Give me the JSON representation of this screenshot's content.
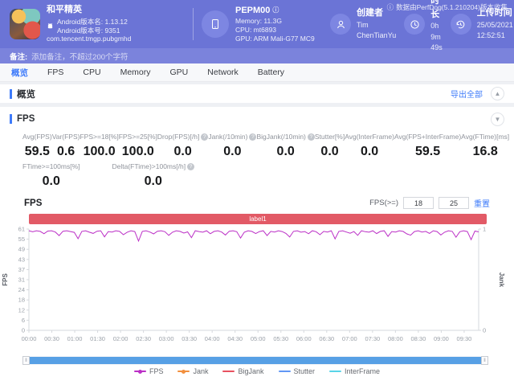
{
  "header": {
    "collect_note": "数据由PerfDog(5.1.210204)版本收集",
    "app": {
      "title": "和平精英",
      "version_name": "Android版本名: 1.13.12",
      "version_code": "Android版本号: 9351",
      "package": "com.tencent.tmgp.pubgmhd"
    },
    "device": {
      "name": "PEPM00",
      "memory": "Memory: 11.3G",
      "cpu": "CPU: mt6893",
      "gpu": "GPU: ARM Mali-G77 MC9"
    },
    "creator": {
      "label": "创建者",
      "value": "Tim ChenTianYu"
    },
    "duration": {
      "label": "时长",
      "value": "0h 9m 49s"
    },
    "upload": {
      "label": "上传时间",
      "value": "25/05/2021 12:52:51"
    }
  },
  "remark": {
    "label": "备注:",
    "placeholder": "添加备注，不超过200个字符"
  },
  "tabs": [
    {
      "label": "概览",
      "active": true
    },
    {
      "label": "FPS",
      "active": false
    },
    {
      "label": "CPU",
      "active": false
    },
    {
      "label": "Memory",
      "active": false
    },
    {
      "label": "GPU",
      "active": false
    },
    {
      "label": "Network",
      "active": false
    },
    {
      "label": "Battery",
      "active": false
    }
  ],
  "overview_section": {
    "title": "概览",
    "export_label": "导出全部"
  },
  "fps_section": {
    "title": "FPS",
    "stats": [
      {
        "label": "Avg(FPS)",
        "value": "59.5",
        "info": false
      },
      {
        "label": "Var(FPS)",
        "value": "0.6",
        "info": false
      },
      {
        "label": "FPS>=18[%]",
        "value": "100.0",
        "info": false
      },
      {
        "label": "FPS>=25[%]",
        "value": "100.0",
        "info": false
      },
      {
        "label": "Drop(FPS)[/h]",
        "value": "0.0",
        "info": true
      },
      {
        "label": "Jank(/10min)",
        "value": "0.0",
        "info": true
      },
      {
        "label": "BigJank(/10min)",
        "value": "0.0",
        "info": true
      },
      {
        "label": "Stutter[%]",
        "value": "0.0",
        "info": false
      },
      {
        "label": "Avg(InterFrame)",
        "value": "0.0",
        "info": false
      },
      {
        "label": "Avg(FPS+InterFrame)",
        "value": "59.5",
        "info": false
      },
      {
        "label": "Avg(FTime)[ms]",
        "value": "16.8",
        "info": false
      }
    ],
    "stats_row2": [
      {
        "label": "FTime>=100ms[%]",
        "value": "0.0",
        "info": false
      },
      {
        "label": "Delta(FTime)>100ms[/h]",
        "value": "0.0",
        "info": true
      }
    ],
    "controls": {
      "fps_ge_label": "FPS(>=)",
      "input1": "18",
      "input2": "25",
      "reset_label": "重置"
    }
  },
  "chart_data": {
    "type": "line",
    "title": "FPS",
    "annotation_band": "label1",
    "annotation_band_color": "#e25a66",
    "ylabel_left": "FPS",
    "ylabel_right": "Jank",
    "ylim_left": [
      0,
      61
    ],
    "ylim_right": [
      0,
      1
    ],
    "y_ticks_left": [
      61,
      55,
      49,
      43,
      37,
      31,
      24,
      18,
      12,
      6,
      0
    ],
    "y_ticks_right": [
      1,
      0
    ],
    "x_ticks": [
      "00:00",
      "00:30",
      "01:00",
      "01:30",
      "02:00",
      "02:30",
      "03:00",
      "03:30",
      "04:00",
      "04:30",
      "05:00",
      "05:30",
      "06:00",
      "06:30",
      "07:00",
      "07:30",
      "08:00",
      "08:30",
      "09:00",
      "09:30"
    ],
    "x_tick_interval_seconds": 30,
    "x_range_seconds": [
      0,
      589
    ],
    "grid": false,
    "legend_position": "bottom",
    "series": [
      {
        "name": "FPS",
        "color": "#bb2fc6",
        "axis": "left",
        "values": [
          60,
          59.4,
          60,
          59.6,
          58.2,
          59.8,
          60,
          59.2,
          57.1,
          59.7,
          60,
          59.5,
          59,
          55.2,
          59.6,
          60,
          59.1,
          58.4,
          59.7,
          60,
          56.3,
          59.5,
          59.2,
          60,
          59.6,
          57.6,
          59.1,
          60,
          59.5,
          53.8,
          59.6,
          60,
          59.2,
          58.1,
          59.7,
          60,
          59.4,
          57.2,
          59.1,
          60,
          59.6,
          58.6,
          59.3,
          55.8,
          60,
          59.5,
          59.1,
          60,
          58.2,
          59.6,
          60,
          59.2,
          57.4,
          59.7,
          60,
          59.4,
          55.6,
          59.1,
          60,
          59.6,
          58.3,
          59.5,
          60,
          57.1,
          59.6,
          59.2,
          60,
          59.5,
          58.4,
          56.2,
          59.6,
          60,
          59.1,
          59.5,
          58.2,
          60,
          59.4,
          57.6,
          59.6,
          59.2,
          60,
          55.1,
          59.6,
          60,
          59.2,
          58.5,
          59.5,
          57.2,
          60,
          59.4,
          59.1,
          60,
          58.3,
          59.6,
          60,
          56.6,
          59.5,
          59.2,
          60,
          59.6,
          58.1,
          57.3,
          59.5,
          60,
          59.2,
          59.6,
          58.4,
          60,
          59.5,
          57.4,
          59.1,
          60,
          59.6,
          56.1,
          59.4,
          60,
          59.5,
          54.6,
          59.8,
          59.3
        ]
      },
      {
        "name": "Jank",
        "color": "#f2903e",
        "axis": "right",
        "values_constant": 0
      },
      {
        "name": "BigJank",
        "color": "#e8515f",
        "axis": "right",
        "values_constant": 0
      },
      {
        "name": "Stutter",
        "color": "#6197f5",
        "axis": "right",
        "values_constant": 0
      },
      {
        "name": "InterFrame",
        "color": "#59d4e8",
        "axis": "left",
        "values_constant": 0
      }
    ],
    "legend": [
      {
        "label": "FPS",
        "color": "#bb2fc6",
        "marker": "dot"
      },
      {
        "label": "Jank",
        "color": "#f2903e",
        "marker": "dot"
      },
      {
        "label": "BigJank",
        "color": "#e8515f",
        "marker": "line"
      },
      {
        "label": "Stutter",
        "color": "#6197f5",
        "marker": "line"
      },
      {
        "label": "InterFrame",
        "color": "#59d4e8",
        "marker": "line"
      }
    ]
  }
}
